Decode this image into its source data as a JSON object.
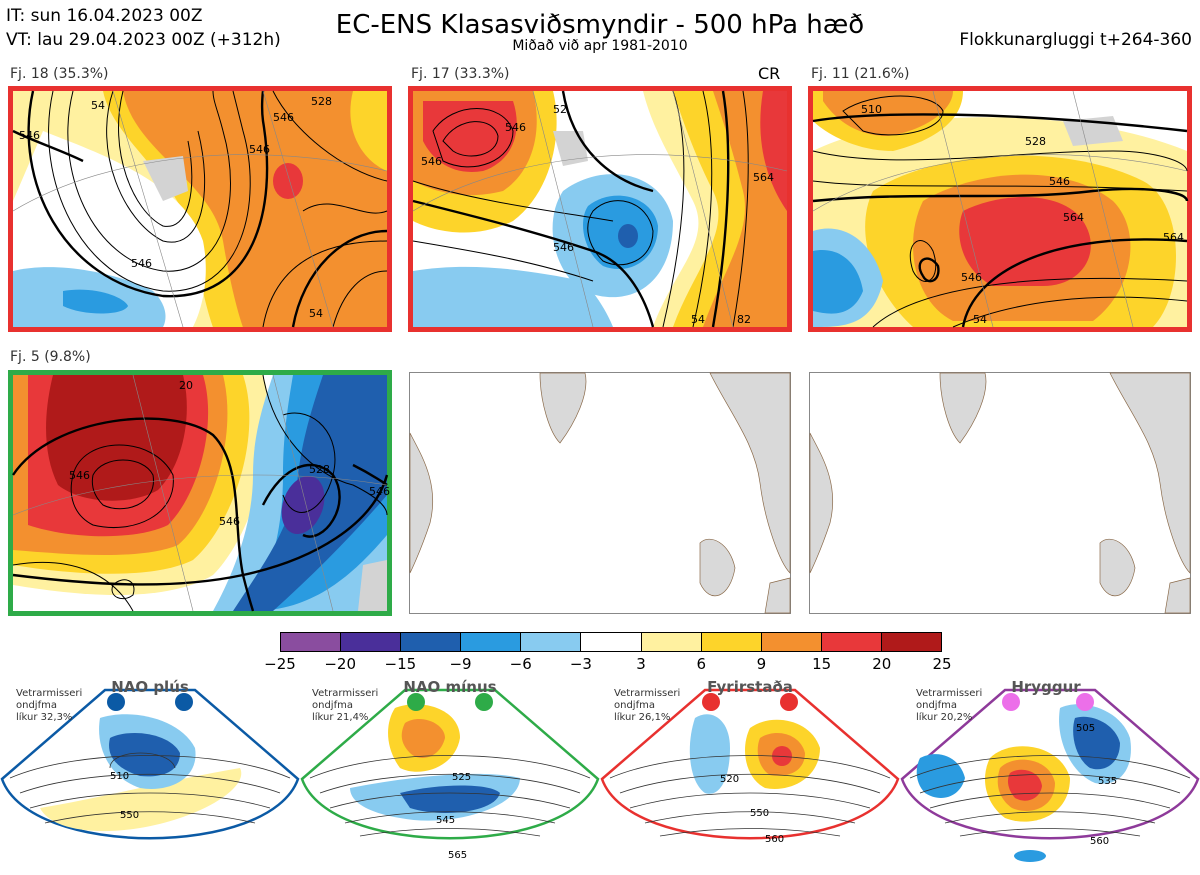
{
  "header": {
    "it": "IT: sun 16.04.2023 00Z",
    "vt": "VT: lau 29.04.2023 00Z  (+312h)",
    "title": "EC-ENS Klasasviðsmyndir - 500 hPa hæð",
    "subtitle": "Miðað við apr 1981-2010",
    "window": "Flokkunargluggi t+264-360"
  },
  "panels": [
    {
      "label": "Fj. 18 (35.3%)",
      "border": "#e8312f",
      "tag": ""
    },
    {
      "label": "Fj. 17 (33.3%)",
      "border": "#e8312f",
      "tag": "CR"
    },
    {
      "label": "Fj. 11 (21.6%)",
      "border": "#e8312f",
      "tag": ""
    },
    {
      "label": "Fj. 5 (9.8%)",
      "border": "#2eab48",
      "tag": ""
    }
  ],
  "colorbar": {
    "colors": [
      "#8a4d9f",
      "#4a2f9a",
      "#1f5fae",
      "#2a9be0",
      "#88cbf0",
      "#ffffff",
      "#fff1a0",
      "#fdd42a",
      "#f3902f",
      "#e8383a",
      "#b01a1a"
    ],
    "ticks": [
      "−25",
      "−20",
      "−15",
      "−9",
      "−6",
      "−3",
      "3",
      "6",
      "9",
      "15",
      "20",
      "25"
    ]
  },
  "regimes": [
    {
      "name": "NAO plús",
      "desc": [
        "Vetrarmisseri",
        "ondjfma",
        "líkur 32,3%"
      ],
      "color": "#0b5aa5",
      "labels": [
        "510",
        "550"
      ]
    },
    {
      "name": "NAO mínus",
      "desc": [
        "Vetrarmisseri",
        "ondjfma",
        "líkur 21,4%"
      ],
      "color": "#2eab48",
      "labels": [
        "525",
        "545",
        "565"
      ]
    },
    {
      "name": "Fyrirstaða",
      "desc": [
        "Vetrarmisseri",
        "ondjfma",
        "líkur 26,1%"
      ],
      "color": "#e8312f",
      "labels": [
        "520",
        "550",
        "560"
      ]
    },
    {
      "name": "Hryggur",
      "desc": [
        "Vetrarmisseri",
        "ondjfma",
        "líkur 20,2%"
      ],
      "color": "#ec6fe9",
      "labels": [
        "505",
        "535",
        "560"
      ]
    }
  ],
  "contour_labels": {
    "p1": [
      "546",
      "546",
      "546",
      "54",
      "546",
      "528",
      "54"
    ],
    "p2": [
      "546",
      "546",
      "52",
      "564",
      "546",
      "54",
      "82"
    ],
    "p3": [
      "510",
      "528",
      "546",
      "564",
      "546",
      "54",
      "564"
    ],
    "p4": [
      "20",
      "546",
      "546",
      "528",
      "546"
    ]
  }
}
